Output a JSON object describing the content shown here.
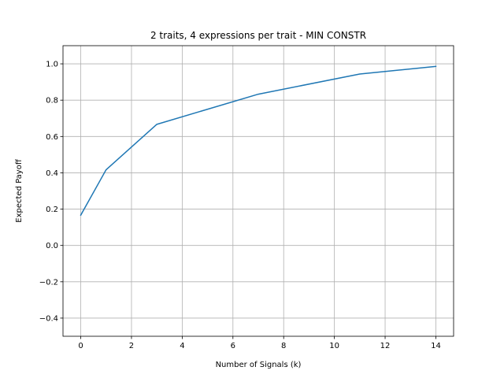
{
  "chart_data": {
    "type": "line",
    "title": "2 traits, 4 expressions per trait - MIN CONSTR",
    "xlabel": "Number of Signals (k)",
    "ylabel": "Expected Payoff",
    "xlim": [
      -0.7,
      14.7
    ],
    "ylim": [
      -0.5,
      1.1
    ],
    "x_ticks": [
      0,
      2,
      4,
      6,
      8,
      10,
      12,
      14
    ],
    "x_tick_labels": [
      "0",
      "2",
      "4",
      "6",
      "8",
      "10",
      "12",
      "14"
    ],
    "y_ticks": [
      -0.4,
      -0.2,
      0.0,
      0.2,
      0.4,
      0.6,
      0.8,
      1.0
    ],
    "y_tick_labels": [
      "−0.4",
      "−0.2",
      "0.0",
      "0.2",
      "0.4",
      "0.6",
      "0.8",
      "1.0"
    ],
    "grid": true,
    "series": [
      {
        "color": "#1f77b4",
        "x": [
          0,
          1,
          3,
          7,
          11,
          14
        ],
        "y": [
          0.167,
          0.417,
          0.667,
          0.833,
          0.944,
          0.986
        ]
      }
    ]
  }
}
